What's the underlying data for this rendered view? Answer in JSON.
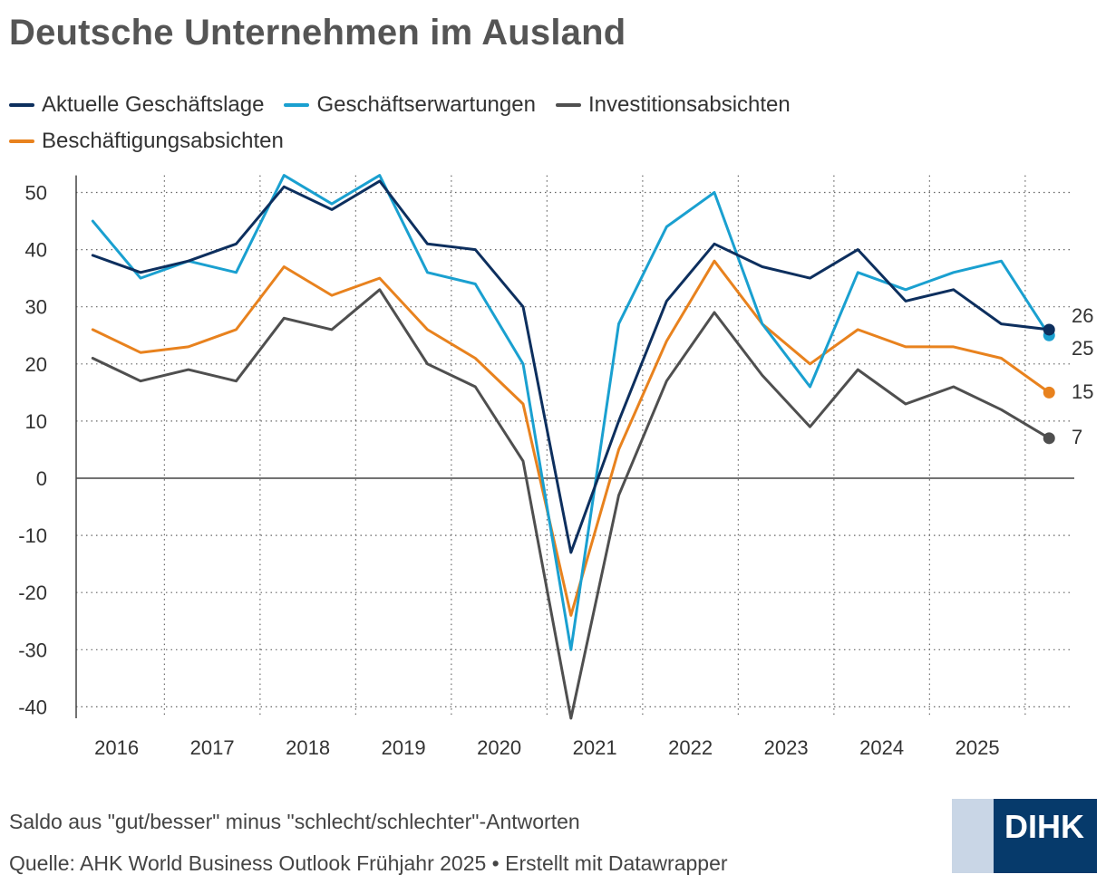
{
  "title": "Deutsche Unternehmen im Ausland",
  "legend": [
    {
      "label": "Aktuelle Geschäftslage",
      "color": "#0d2f5e"
    },
    {
      "label": "Geschäftserwartungen",
      "color": "#1aa0d0"
    },
    {
      "label": "Investitionsabsichten",
      "color": "#4f4f4f"
    },
    {
      "label": "Beschäftigungsabsichten",
      "color": "#e8821e"
    }
  ],
  "notes": {
    "description": "Saldo aus \"gut/besser\" minus \"schlecht/schlechter\"-Antworten",
    "source": "Quelle: AHK World Business Outlook Frühjahr 2025 • Erstellt mit Datawrapper"
  },
  "logo": {
    "text": "DIHK"
  },
  "chart_data": {
    "type": "line",
    "x": [
      "2015-04",
      "2015-10",
      "2016-04",
      "2016-10",
      "2017-04",
      "2017-10",
      "2018-04",
      "2018-10",
      "2019-04",
      "2019-10",
      "2020-04",
      "2020-10",
      "2021-04",
      "2021-10",
      "2022-04",
      "2022-10",
      "2023-04",
      "2023-10",
      "2024-04",
      "2024-10",
      "2025-04"
    ],
    "x_ticks": [
      "2016",
      "2017",
      "2018",
      "2019",
      "2020",
      "2021",
      "2022",
      "2023",
      "2024",
      "2025"
    ],
    "y_ticks": [
      50,
      40,
      30,
      20,
      10,
      0,
      -10,
      -20,
      -30,
      -40
    ],
    "ylim": [
      -42,
      53
    ],
    "grid": true,
    "legend_position": "top",
    "series": [
      {
        "name": "Aktuelle Geschäftslage",
        "color": "#0d2f5e",
        "values": [
          39,
          36,
          38,
          41,
          51,
          47,
          52,
          41,
          40,
          30,
          -13,
          10,
          31,
          41,
          37,
          35,
          40,
          31,
          33,
          27,
          26
        ],
        "end_label": "26"
      },
      {
        "name": "Geschäftserwartungen",
        "color": "#1aa0d0",
        "values": [
          45,
          35,
          38,
          36,
          53,
          48,
          53,
          36,
          34,
          20,
          -30,
          27,
          44,
          50,
          27,
          16,
          36,
          33,
          36,
          38,
          25
        ],
        "end_label": "25"
      },
      {
        "name": "Investitionsabsichten",
        "color": "#4f4f4f",
        "values": [
          21,
          17,
          19,
          17,
          28,
          26,
          33,
          20,
          16,
          3,
          -42,
          -3,
          17,
          29,
          18,
          9,
          19,
          13,
          16,
          12,
          7
        ],
        "end_label": "7"
      },
      {
        "name": "Beschäftigungsabsichten",
        "color": "#e8821e",
        "values": [
          26,
          22,
          23,
          26,
          37,
          32,
          35,
          26,
          21,
          13,
          -24,
          5,
          24,
          38,
          27,
          20,
          26,
          23,
          23,
          21,
          15
        ],
        "end_label": "15"
      }
    ]
  }
}
